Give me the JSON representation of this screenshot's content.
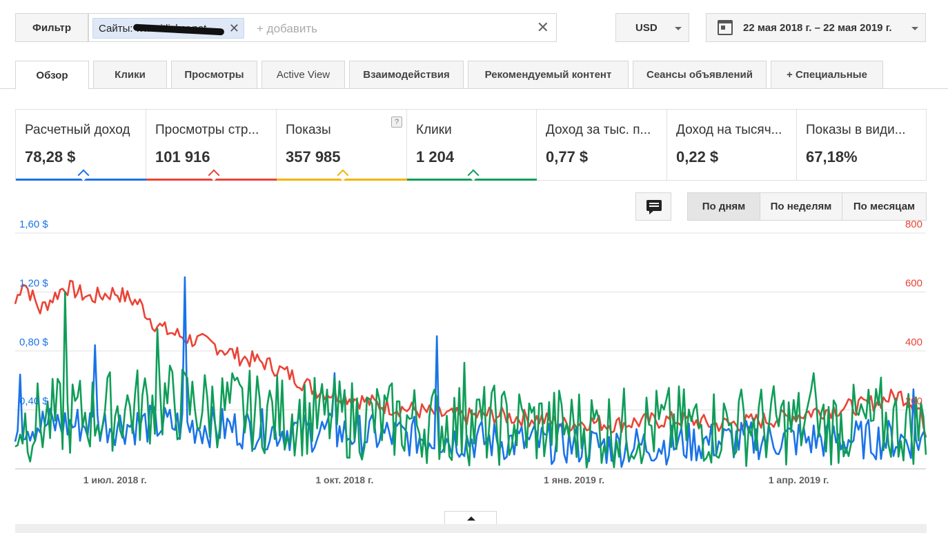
{
  "toolbar": {
    "filter_label": "Фильтр",
    "filter_chip": "Сайты: www.itlicker.net",
    "add_placeholder": "+ добавить",
    "clear_icon": "close-icon",
    "currency": "USD",
    "date_range": "22 мая 2018 г. – 22 мая 2019 г."
  },
  "tabs": [
    {
      "label": "Обзор",
      "active": true
    },
    {
      "label": "Клики"
    },
    {
      "label": "Просмотры"
    },
    {
      "label": "Active View"
    },
    {
      "label": "Взаимодействия"
    },
    {
      "label": "Рекомендуемый контент"
    },
    {
      "label": "Сеансы объявлений"
    },
    {
      "label": "+  Специальные"
    }
  ],
  "metrics": [
    {
      "title": "Расчетный доход",
      "value": "78,28 $",
      "color": "#1a73e8"
    },
    {
      "title": "Просмотры стр...",
      "value": "101 916",
      "color": "#ea4335"
    },
    {
      "title": "Показы",
      "value": "357 985",
      "color": "#f4b400",
      "help": "?"
    },
    {
      "title": "Клики",
      "value": "1 204",
      "color": "#0f9d58"
    },
    {
      "title": "Доход за тыс. п...",
      "value": "0,77 $"
    },
    {
      "title": "Доход на тысяч...",
      "value": "0,22 $"
    },
    {
      "title": "Показы в види...",
      "value": "67,18%"
    }
  ],
  "granularity": {
    "days": "По дням",
    "weeks": "По неделям",
    "months": "По месяцам",
    "active": "days"
  },
  "chart_data": {
    "type": "line",
    "left_axis": {
      "ticks": [
        "1,60 $",
        "1,20 $",
        "0,80 $",
        "0,40 $"
      ],
      "ylim": [
        0,
        1.6
      ],
      "color": "#1a73e8"
    },
    "right_axis": {
      "ticks": [
        "800",
        "600",
        "400",
        "200"
      ],
      "ylim": [
        0,
        800
      ],
      "color": "#ea4335"
    },
    "x_ticks": [
      {
        "label": "1 июл. 2018 г.",
        "day": 40
      },
      {
        "label": "1 окт. 2018 г.",
        "day": 132
      },
      {
        "label": "1 янв. 2019 г.",
        "day": 224
      },
      {
        "label": "1 апр. 2019 г.",
        "day": 314
      }
    ],
    "days": 366,
    "grid": true,
    "series": [
      {
        "metric": "Просмотры страниц",
        "axis": "right",
        "color": "#ea4335",
        "keyframes": [
          [
            0,
            560
          ],
          [
            3,
            640
          ],
          [
            10,
            540
          ],
          [
            20,
            620
          ],
          [
            30,
            580
          ],
          [
            40,
            600
          ],
          [
            50,
            560
          ],
          [
            55,
            500
          ],
          [
            60,
            470
          ],
          [
            70,
            440
          ],
          [
            80,
            420
          ],
          [
            90,
            380
          ],
          [
            100,
            360
          ],
          [
            110,
            320
          ],
          [
            120,
            270
          ],
          [
            130,
            250
          ],
          [
            140,
            230
          ],
          [
            150,
            210
          ],
          [
            160,
            200
          ],
          [
            170,
            185
          ],
          [
            180,
            175
          ],
          [
            190,
            185
          ],
          [
            200,
            175
          ],
          [
            210,
            170
          ],
          [
            220,
            150
          ],
          [
            230,
            160
          ],
          [
            240,
            150
          ],
          [
            250,
            160
          ],
          [
            260,
            165
          ],
          [
            270,
            165
          ],
          [
            280,
            150
          ],
          [
            290,
            155
          ],
          [
            300,
            165
          ],
          [
            310,
            175
          ],
          [
            320,
            195
          ],
          [
            330,
            205
          ],
          [
            340,
            215
          ],
          [
            350,
            240
          ],
          [
            355,
            250
          ],
          [
            360,
            220
          ],
          [
            363,
            200
          ],
          [
            365,
            80
          ]
        ],
        "noise": 30
      },
      {
        "metric": "Расчетный доход",
        "axis": "left",
        "color": "#1a73e8",
        "keyframes": [
          [
            0,
            0.3
          ],
          [
            60,
            0.3
          ],
          [
            120,
            0.25
          ],
          [
            180,
            0.2
          ],
          [
            240,
            0.15
          ],
          [
            300,
            0.2
          ],
          [
            365,
            0.2
          ]
        ],
        "noise": 0.14,
        "spikes": [
          [
            2,
            0.64
          ],
          [
            32,
            0.84
          ],
          [
            68,
            1.3
          ],
          [
            128,
            0.65
          ],
          [
            169,
            0.9
          ],
          [
            360,
            0.54
          ]
        ]
      },
      {
        "metric": "Клики",
        "axis": "left",
        "color": "#0f9d58",
        "keyframes": [
          [
            0,
            0.3
          ],
          [
            60,
            0.45
          ],
          [
            120,
            0.35
          ],
          [
            180,
            0.3
          ],
          [
            240,
            0.28
          ],
          [
            300,
            0.3
          ],
          [
            365,
            0.3
          ]
        ],
        "noise": 0.28,
        "spikes": [
          [
            20,
            1.2
          ],
          [
            57,
            0.95
          ],
          [
            180,
            0.72
          ],
          [
            320,
            0.65
          ],
          [
            347,
            0.62
          ]
        ]
      }
    ]
  }
}
